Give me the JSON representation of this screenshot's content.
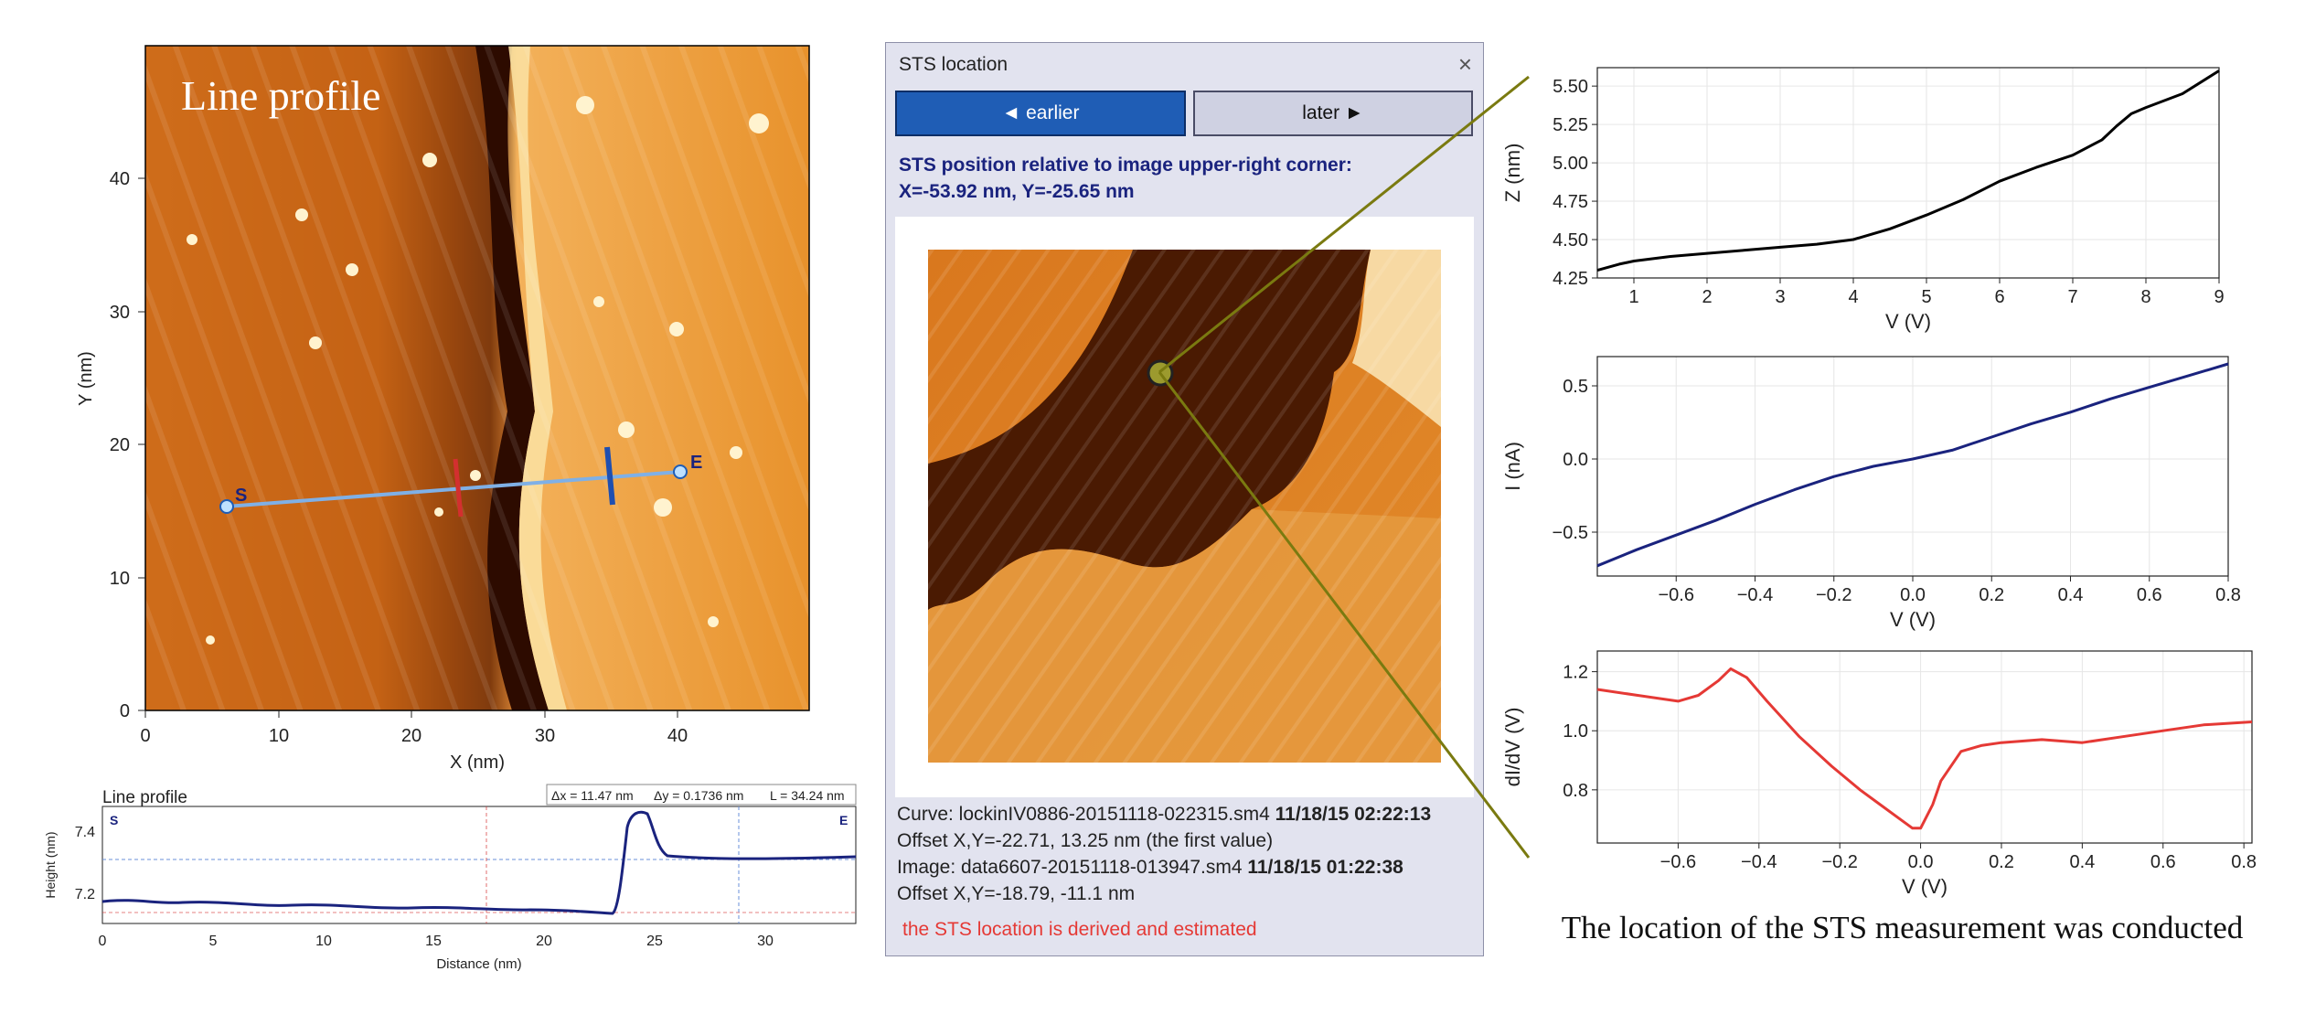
{
  "left_panel": {
    "image_title": "Line profile",
    "x_axis_label": "X (nm)",
    "y_axis_label": "Y (nm)",
    "x_ticks": [
      "0",
      "10",
      "20",
      "30",
      "40"
    ],
    "y_ticks": [
      "0",
      "10",
      "20",
      "30",
      "40"
    ],
    "marker_start": "S",
    "marker_end": "E",
    "profile": {
      "title": "Line profile",
      "dx": "Δx = 11.47 nm",
      "dy": "Δy = 0.1736 nm",
      "length": "L = 34.24 nm",
      "start_label": "S",
      "end_label": "E",
      "x_label": "Distance (nm)",
      "y_label": "Height (nm)",
      "x_ticks": [
        "0",
        "5",
        "10",
        "15",
        "20",
        "25",
        "30"
      ],
      "y_ticks": [
        "7.2",
        "7.4"
      ]
    }
  },
  "dialog": {
    "title": "STS location",
    "close_glyph": "×",
    "earlier_button": "◄ earlier",
    "later_button": "later ►",
    "position_header_line1": "STS position relative to image upper-right corner:",
    "position_header_line2": "X=-53.92 nm, Y=-25.65 nm",
    "curve_prefix": "Curve: lockinIV0886-20151118-022315.sm4 ",
    "curve_time": "11/18/15 02:22:13",
    "curve_offset": "Offset X,Y=-22.71, 13.25 nm (the first value)",
    "image_prefix": "Image: data6607-20151118-013947.sm4 ",
    "image_time": "11/18/15 01:22:38",
    "image_offset": "Offset X,Y=-18.79, -11.1 nm",
    "warning": "the STS location is derived and estimated"
  },
  "caption": "The location of the STS measurement was conducted",
  "colors": {
    "accent_blue": "#1f5db5",
    "warning_red": "#e53935",
    "connector_olive": "#7a7a10",
    "z_line": "#000000",
    "i_line": "#1a237e",
    "didv_line": "#e53935"
  },
  "chart_data": [
    {
      "type": "line",
      "title": "",
      "xlabel": "V (V)",
      "ylabel": "Z (nm)",
      "xlim": [
        0.5,
        9.0
      ],
      "ylim": [
        4.25,
        5.62
      ],
      "xticks": [
        "1",
        "2",
        "3",
        "4",
        "5",
        "6",
        "7",
        "8",
        "9"
      ],
      "yticks": [
        "4.25",
        "4.50",
        "4.75",
        "5.00",
        "5.25",
        "5.50"
      ],
      "grid": true,
      "series": [
        {
          "x": [
            0.5,
            0.8,
            1.0,
            1.5,
            2.0,
            2.5,
            3.0,
            3.5,
            4.0,
            4.5,
            5.0,
            5.5,
            6.0,
            6.5,
            7.0,
            7.4,
            7.6,
            7.8,
            8.0,
            8.5,
            9.0
          ],
          "y": [
            4.3,
            4.34,
            4.36,
            4.39,
            4.41,
            4.43,
            4.45,
            4.47,
            4.5,
            4.57,
            4.66,
            4.76,
            4.88,
            4.97,
            5.05,
            5.15,
            5.24,
            5.32,
            5.36,
            5.45,
            5.6
          ]
        }
      ]
    },
    {
      "type": "line",
      "title": "",
      "xlabel": "V (V)",
      "ylabel": "I (nA)",
      "xlim": [
        -0.8,
        0.8
      ],
      "ylim": [
        -0.8,
        0.7
      ],
      "xticks": [
        "−0.6",
        "−0.4",
        "−0.2",
        "0.0",
        "0.2",
        "0.4",
        "0.6",
        "0.8"
      ],
      "yticks": [
        "−0.5",
        "0.0",
        "0.5"
      ],
      "grid": true,
      "series": [
        {
          "x": [
            -0.8,
            -0.7,
            -0.6,
            -0.5,
            -0.4,
            -0.3,
            -0.2,
            -0.1,
            0.0,
            0.1,
            0.2,
            0.3,
            0.4,
            0.5,
            0.6,
            0.7,
            0.8
          ],
          "y": [
            -0.73,
            -0.62,
            -0.52,
            -0.42,
            -0.31,
            -0.21,
            -0.12,
            -0.05,
            0.0,
            0.06,
            0.15,
            0.24,
            0.32,
            0.41,
            0.49,
            0.57,
            0.65
          ]
        }
      ]
    },
    {
      "type": "line",
      "title": "",
      "xlabel": "V (V)",
      "ylabel": "dI/dV (V)",
      "xlim": [
        -0.8,
        0.82
      ],
      "ylim": [
        0.62,
        1.27
      ],
      "xticks": [
        "−0.6",
        "−0.4",
        "−0.2",
        "0.0",
        "0.2",
        "0.4",
        "0.6",
        "0.8"
      ],
      "yticks": [
        "0.8",
        "1.0",
        "1.2"
      ],
      "grid": true,
      "series": [
        {
          "x": [
            -0.8,
            -0.7,
            -0.6,
            -0.55,
            -0.5,
            -0.47,
            -0.43,
            -0.38,
            -0.3,
            -0.22,
            -0.15,
            -0.1,
            -0.05,
            -0.02,
            0.0,
            0.03,
            0.05,
            0.1,
            0.15,
            0.2,
            0.3,
            0.4,
            0.5,
            0.6,
            0.7,
            0.82
          ],
          "y": [
            1.14,
            1.12,
            1.1,
            1.12,
            1.17,
            1.21,
            1.18,
            1.1,
            0.98,
            0.88,
            0.8,
            0.75,
            0.7,
            0.67,
            0.67,
            0.75,
            0.83,
            0.93,
            0.95,
            0.96,
            0.97,
            0.96,
            0.98,
            1.0,
            1.02,
            1.03
          ]
        }
      ]
    }
  ]
}
